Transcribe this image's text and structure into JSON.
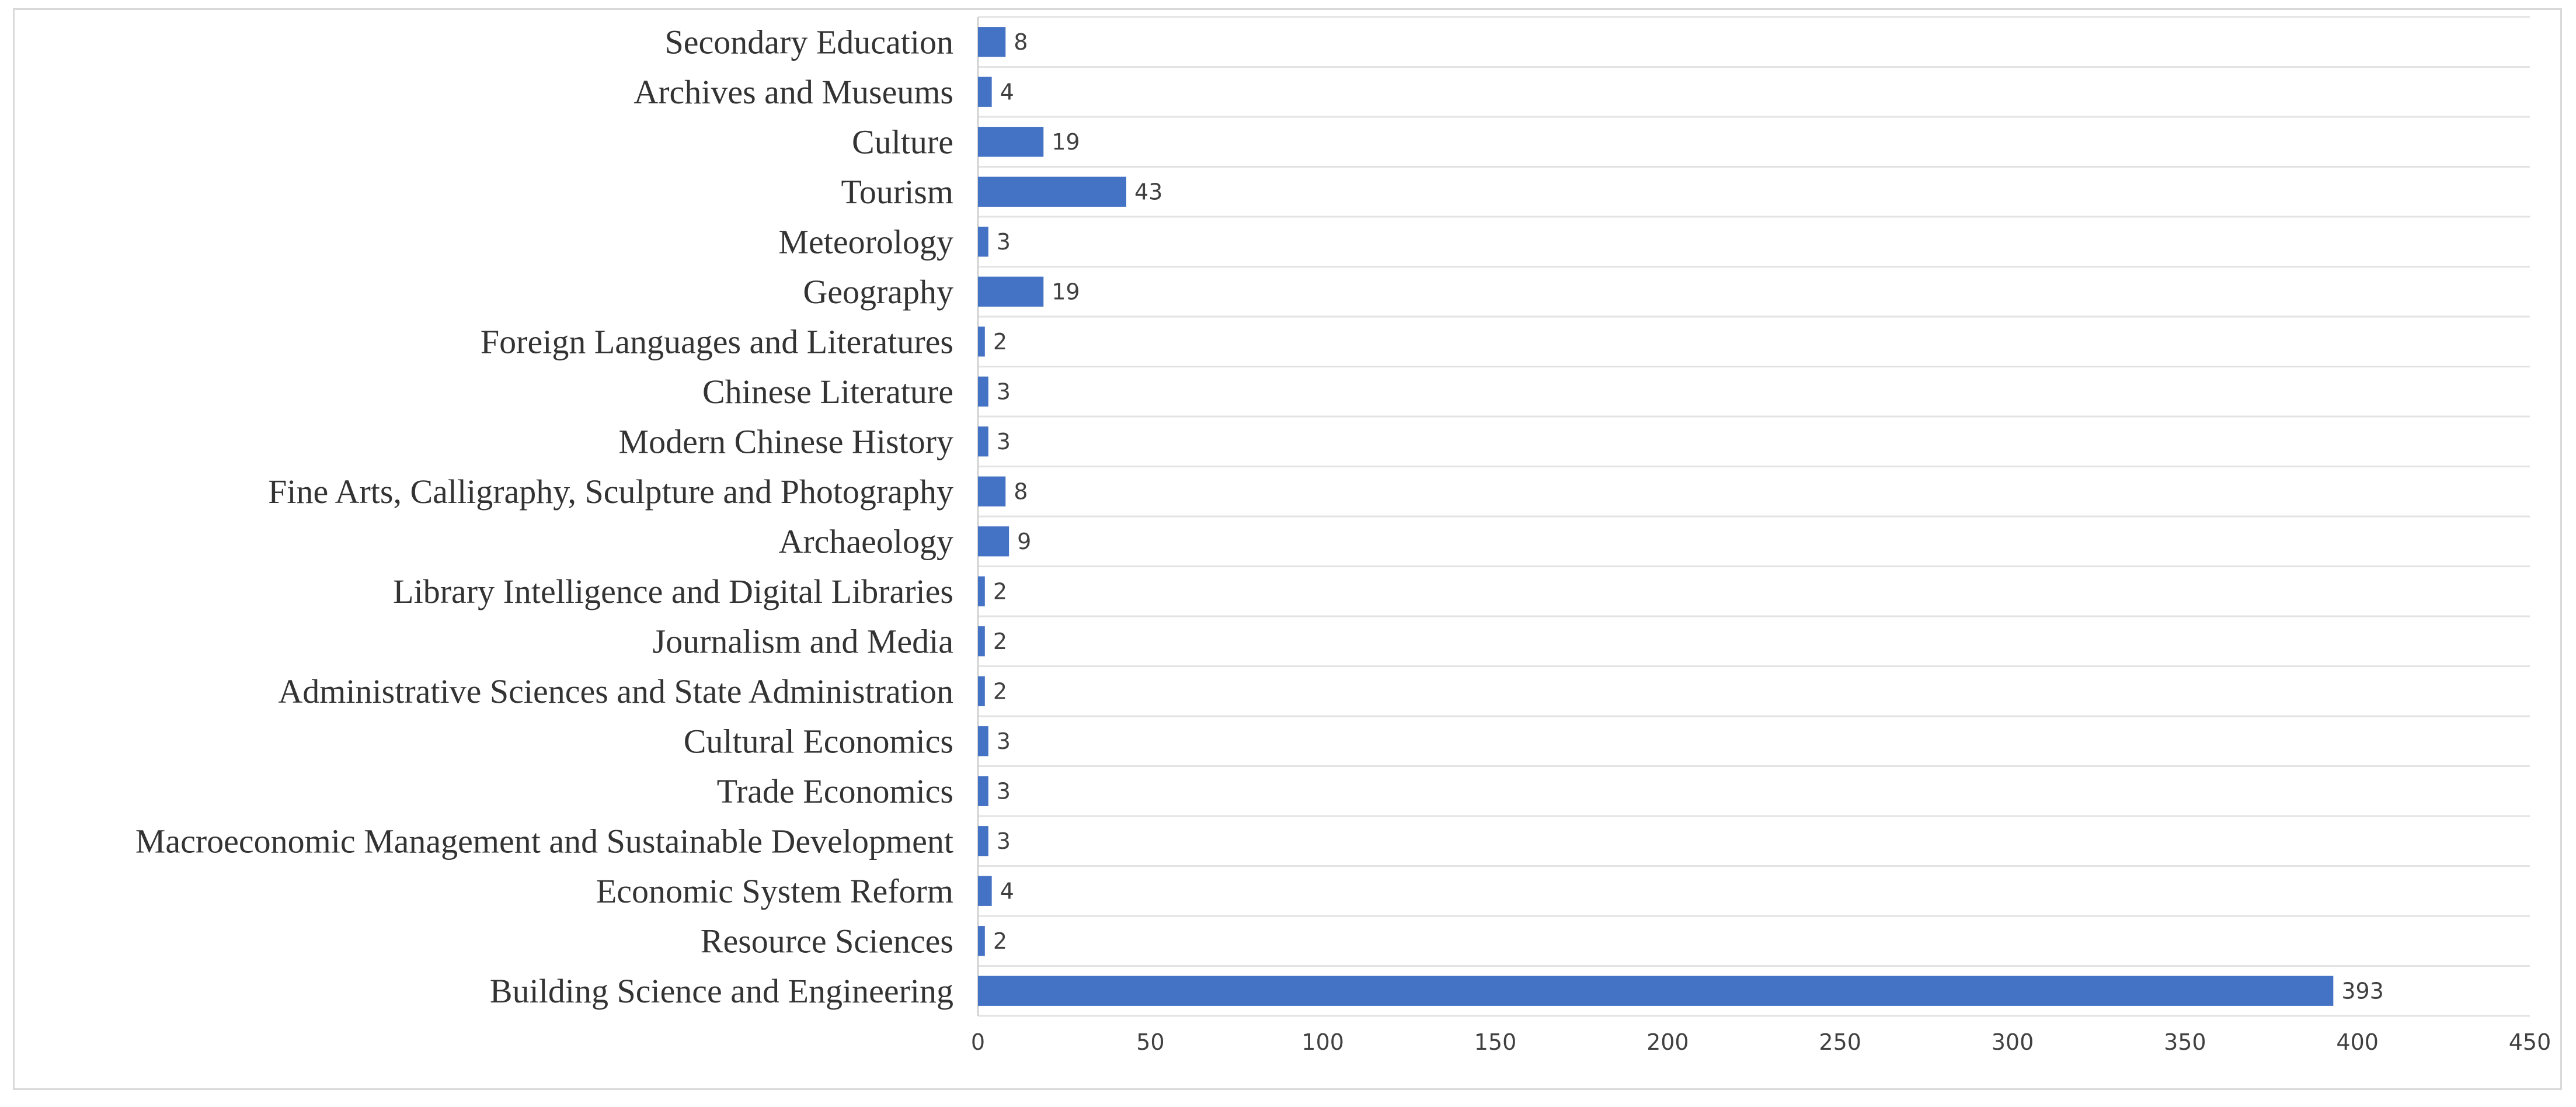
{
  "chart_data": {
    "type": "bar",
    "orientation": "horizontal",
    "title": "",
    "xlabel": "",
    "ylabel": "",
    "xlim": [
      0,
      450
    ],
    "x_ticks": [
      0,
      50,
      100,
      150,
      200,
      250,
      300,
      350,
      400,
      450
    ],
    "categories": [
      "Secondary Education",
      "Archives and Museums",
      "Culture",
      "Tourism",
      "Meteorology",
      "Geography",
      "Foreign Languages and Literatures",
      "Chinese Literature",
      "Modern Chinese History",
      "Fine Arts, Calligraphy, Sculpture and Photography",
      "Archaeology",
      "Library Intelligence and Digital Libraries",
      "Journalism and Media",
      "Administrative Sciences and State Administration",
      "Cultural Economics",
      "Trade Economics",
      "Macroeconomic Management and Sustainable Development",
      "Economic System Reform",
      "Resource Sciences",
      "Building Science and Engineering"
    ],
    "values": [
      8,
      4,
      19,
      43,
      3,
      19,
      2,
      3,
      3,
      8,
      9,
      2,
      2,
      2,
      3,
      3,
      3,
      4,
      2,
      393
    ],
    "bar_color": "#4472C4",
    "grid": true,
    "legend": "none"
  }
}
